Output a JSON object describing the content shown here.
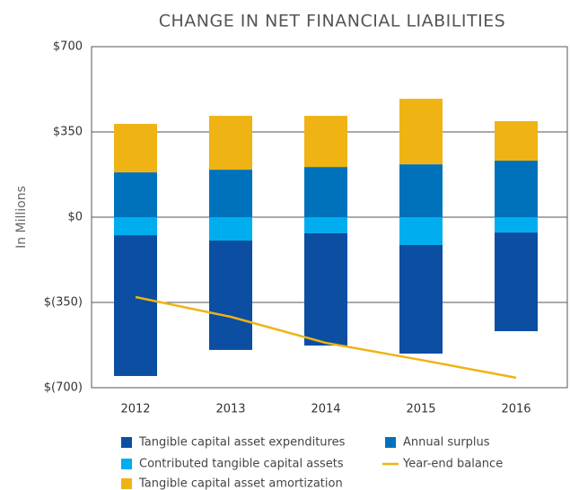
{
  "chart_data": {
    "type": "bar",
    "stacked": true,
    "title": "CHANGE IN NET FINANCIAL LIABILITIES",
    "ylabel": "In Millions",
    "categories": [
      "2012",
      "2013",
      "2014",
      "2015",
      "2016"
    ],
    "ylim": [
      -700,
      700
    ],
    "yticks": [
      {
        "value": 700,
        "label": "$700"
      },
      {
        "value": 350,
        "label": "$350"
      },
      {
        "value": 0,
        "label": "$0"
      },
      {
        "value": -350,
        "label": "$(350)"
      },
      {
        "value": -700,
        "label": "$(700)"
      }
    ],
    "grid": true,
    "series": [
      {
        "name": "Contributed tangible capital assets",
        "color": "#00aeef",
        "values": [
          -74,
          -96,
          -66,
          -114,
          -63
        ]
      },
      {
        "name": "Tangible capital asset expenditures",
        "color": "#0b4ea2",
        "values": [
          -578,
          -449,
          -461,
          -446,
          -405
        ]
      },
      {
        "name": "Annual surplus",
        "color": "#0072bc",
        "values": [
          184,
          195,
          206,
          217,
          232
        ]
      },
      {
        "name": "Tangible capital asset amortization",
        "color": "#efb313",
        "values": [
          199,
          221,
          210,
          269,
          162
        ]
      },
      {
        "name": "Year-end balance",
        "type": "line",
        "color": "#efb313",
        "values": [
          -328,
          -409,
          -516,
          -586,
          -659
        ]
      }
    ]
  }
}
